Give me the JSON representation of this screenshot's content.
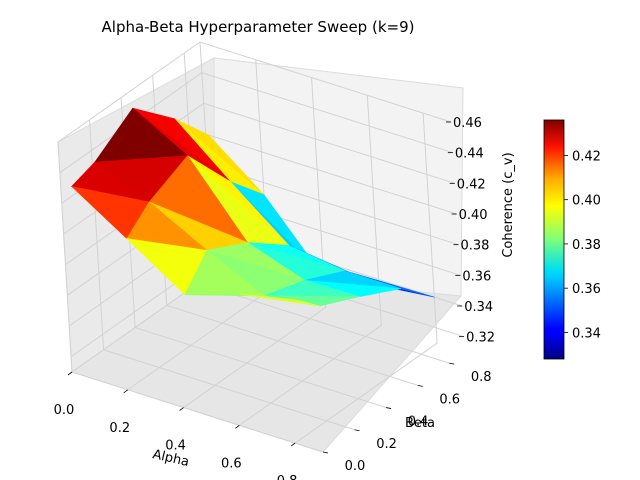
{
  "chart_data": {
    "type": "surface",
    "title": "Alpha-Beta Hyperparameter Sweep (k=9)",
    "xlabel": "Alpha",
    "ylabel": "Beta",
    "zlabel": "Coherence (c_v)",
    "x_ticks": [
      "0.0",
      "0.2",
      "0.4",
      "0.6",
      "0.8"
    ],
    "y_ticks": [
      "0.0",
      "0.2",
      "0.4",
      "0.6",
      "0.8"
    ],
    "z_ticks": [
      "0.32",
      "0.34",
      "0.36",
      "0.38",
      "0.40",
      "0.42",
      "0.44",
      "0.46"
    ],
    "colorbar_ticks": [
      "0.34",
      "0.36",
      "0.38",
      "0.40",
      "0.42"
    ],
    "colormap": "jet",
    "xlim": [
      0.0,
      0.9
    ],
    "ylim": [
      0.0,
      0.9
    ],
    "zlim": [
      0.31,
      0.46
    ],
    "colorbar_range": [
      0.328,
      0.436
    ],
    "grid": true,
    "surface_points": [
      {
        "alpha": 0.01,
        "beta": 0.9,
        "coherence": 0.4
      },
      {
        "alpha": 0.01,
        "beta": 0.7,
        "coherence": 0.425
      },
      {
        "alpha": 0.01,
        "beta": 0.45,
        "coherence": 0.45
      },
      {
        "alpha": 0.01,
        "beta": 0.2,
        "coherence": 0.433
      },
      {
        "alpha": 0.01,
        "beta": 0.05,
        "coherence": 0.428
      },
      {
        "alpha": 0.2,
        "beta": 0.9,
        "coherence": 0.372
      },
      {
        "alpha": 0.2,
        "beta": 0.7,
        "coherence": 0.395
      },
      {
        "alpha": 0.2,
        "beta": 0.45,
        "coherence": 0.43
      },
      {
        "alpha": 0.2,
        "beta": 0.2,
        "coherence": 0.418
      },
      {
        "alpha": 0.2,
        "beta": 0.05,
        "coherence": 0.405
      },
      {
        "alpha": 0.4,
        "beta": 0.9,
        "coherence": 0.33
      },
      {
        "alpha": 0.4,
        "beta": 0.7,
        "coherence": 0.365
      },
      {
        "alpha": 0.4,
        "beta": 0.45,
        "coherence": 0.385
      },
      {
        "alpha": 0.4,
        "beta": 0.2,
        "coherence": 0.398
      },
      {
        "alpha": 0.4,
        "beta": 0.05,
        "coherence": 0.38
      },
      {
        "alpha": 0.6,
        "beta": 0.9,
        "coherence": 0.336
      },
      {
        "alpha": 0.6,
        "beta": 0.7,
        "coherence": 0.36
      },
      {
        "alpha": 0.6,
        "beta": 0.45,
        "coherence": 0.372
      },
      {
        "alpha": 0.6,
        "beta": 0.2,
        "coherence": 0.38
      },
      {
        "alpha": 0.6,
        "beta": 0.05,
        "coherence": 0.392
      },
      {
        "alpha": 0.8,
        "beta": 0.9,
        "coherence": 0.34
      },
      {
        "alpha": 0.8,
        "beta": 0.7,
        "coherence": 0.36
      },
      {
        "alpha": 0.8,
        "beta": 0.45,
        "coherence": 0.373
      },
      {
        "alpha": 0.8,
        "beta": 0.2,
        "coherence": 0.385
      },
      {
        "alpha": 0.8,
        "beta": 0.05,
        "coherence": 0.4
      }
    ]
  }
}
